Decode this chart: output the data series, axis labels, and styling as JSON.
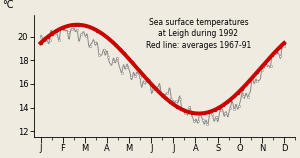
{
  "title_line1": "Sea surface temperatures",
  "title_line2": "at Leigh during 1992",
  "title_line3": "Red line: averages 1967-91",
  "ylabel": "°C",
  "ylim": [
    11.5,
    21.8
  ],
  "yticks": [
    12,
    14,
    16,
    18,
    20
  ],
  "months": [
    "J",
    "F",
    "M",
    "A",
    "M",
    "J",
    "J",
    "A",
    "S",
    "O",
    "N",
    "D"
  ],
  "background_color": "#f0ebe0",
  "red_line_color": "#cc0000",
  "obs_line_color": "#888888",
  "red_mean": 17.25,
  "red_amp": 3.75,
  "red_peak": 1.8,
  "obs_mean": 16.0,
  "obs_amp": 4.0,
  "obs_peak": 1.7
}
